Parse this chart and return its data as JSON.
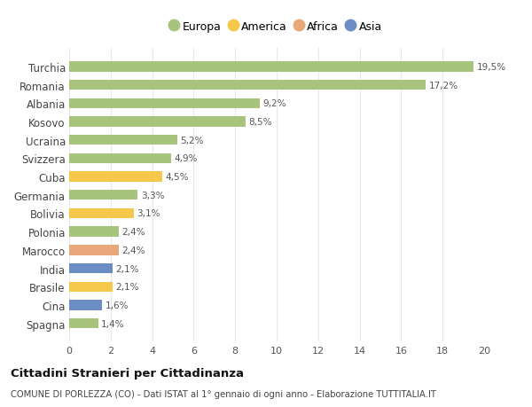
{
  "countries": [
    "Turchia",
    "Romania",
    "Albania",
    "Kosovo",
    "Ucraina",
    "Svizzera",
    "Cuba",
    "Germania",
    "Bolivia",
    "Polonia",
    "Marocco",
    "India",
    "Brasile",
    "Cina",
    "Spagna"
  ],
  "values": [
    19.5,
    17.2,
    9.2,
    8.5,
    5.2,
    4.9,
    4.5,
    3.3,
    3.1,
    2.4,
    2.4,
    2.1,
    2.1,
    1.6,
    1.4
  ],
  "labels": [
    "19,5%",
    "17,2%",
    "9,2%",
    "8,5%",
    "5,2%",
    "4,9%",
    "4,5%",
    "3,3%",
    "3,1%",
    "2,4%",
    "2,4%",
    "2,1%",
    "2,1%",
    "1,6%",
    "1,4%"
  ],
  "continents": [
    "Europa",
    "Europa",
    "Europa",
    "Europa",
    "Europa",
    "Europa",
    "America",
    "Europa",
    "America",
    "Europa",
    "Africa",
    "Asia",
    "America",
    "Asia",
    "Europa"
  ],
  "colors": {
    "Europa": "#a8c47c",
    "America": "#f5c84c",
    "Africa": "#e8a87a",
    "Asia": "#6b8dc4"
  },
  "legend_order": [
    "Europa",
    "America",
    "Africa",
    "Asia"
  ],
  "title": "Cittadini Stranieri per Cittadinanza",
  "subtitle": "COMUNE DI PORLEZZA (CO) - Dati ISTAT al 1° gennaio di ogni anno - Elaborazione TUTTITALIA.IT",
  "xlim": [
    0,
    20
  ],
  "xticks": [
    0,
    2,
    4,
    6,
    8,
    10,
    12,
    14,
    16,
    18,
    20
  ],
  "background_color": "#ffffff",
  "grid_color": "#e8e8e8"
}
